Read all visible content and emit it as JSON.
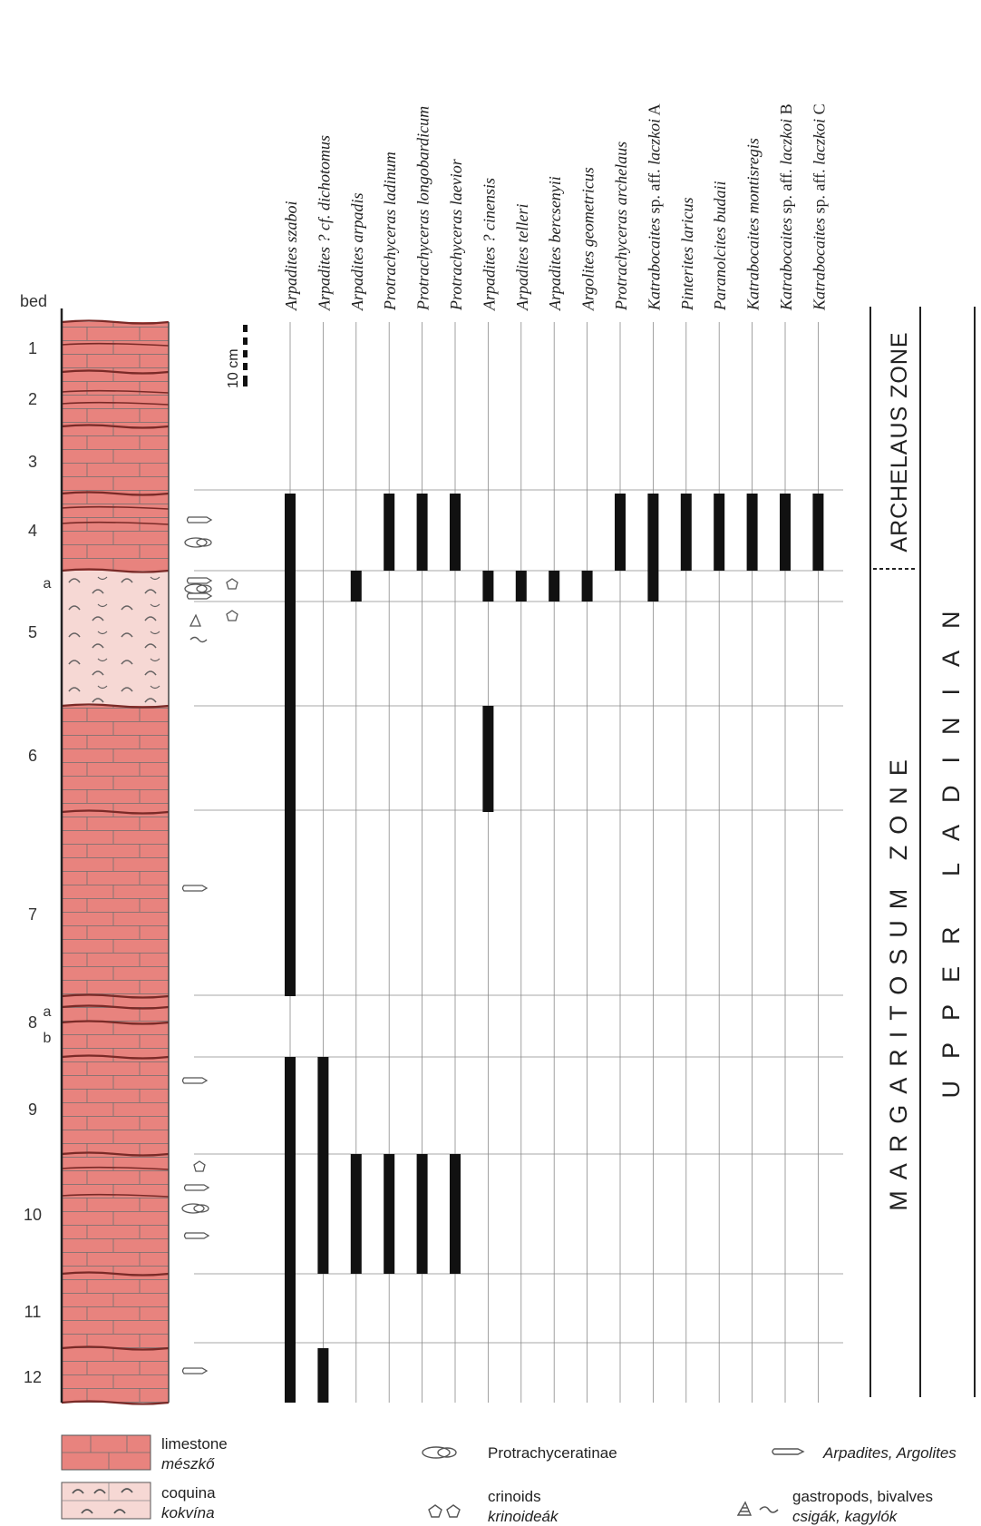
{
  "header": {
    "bed_label": "bed"
  },
  "scale_bar": {
    "label": "10 cm"
  },
  "beds": [
    {
      "label": "1"
    },
    {
      "label": "2"
    },
    {
      "label": "3"
    },
    {
      "label": "4"
    },
    {
      "label": "5",
      "sub_label": "a"
    },
    {
      "label": "6"
    },
    {
      "label": "7"
    },
    {
      "label": "8",
      "sub_labels": [
        "a",
        "b"
      ]
    },
    {
      "label": "9"
    },
    {
      "label": "10"
    },
    {
      "label": "11"
    },
    {
      "label": "12"
    }
  ],
  "taxa": [
    {
      "name": "Arpadites szaboi"
    },
    {
      "name": "Arpadites ? cf. dichotomus"
    },
    {
      "name": "Arpadites arpadis"
    },
    {
      "name": "Protrachyceras ladinum"
    },
    {
      "name": "Protrachyceras longobardicum"
    },
    {
      "name": "Protrachyceras laevior"
    },
    {
      "name": "Arpadites ? cinensis"
    },
    {
      "name": "Arpadites telleri"
    },
    {
      "name": "Arpadites bercsenyii"
    },
    {
      "name": "Argolites geometricus"
    },
    {
      "name": "Protrachyceras archelaus"
    },
    {
      "name": "Katrabocaites",
      "suffix": "sp. aff.",
      "epithet": "laczkoi",
      "letter": "A"
    },
    {
      "name": "Pinterites laricus"
    },
    {
      "name": "Paranolcites budaii"
    },
    {
      "name": "Katrabocaites montisregis"
    },
    {
      "name": "Katrabocaites",
      "suffix": "sp. aff.",
      "epithet": "laczkoi",
      "letter": "B"
    },
    {
      "name": "Katrabocaites",
      "suffix": "sp. aff.",
      "epithet": "laczkoi",
      "letter": "C"
    }
  ],
  "ranges": [
    {
      "taxon": 0,
      "from_bed": "4",
      "to_bed": "7"
    },
    {
      "taxon": 0,
      "from_bed": "9",
      "to_bed": "12"
    },
    {
      "taxon": 1,
      "from_bed": "9",
      "to_bed": "10"
    },
    {
      "taxon": 1,
      "from_bed": "12",
      "to_bed": "12"
    },
    {
      "taxon": 2,
      "from_bed": "5a",
      "to_bed": "5a"
    },
    {
      "taxon": 2,
      "from_bed": "10",
      "to_bed": "10"
    },
    {
      "taxon": 3,
      "from_bed": "4",
      "to_bed": "4"
    },
    {
      "taxon": 3,
      "from_bed": "10",
      "to_bed": "10"
    },
    {
      "taxon": 4,
      "from_bed": "4",
      "to_bed": "4"
    },
    {
      "taxon": 4,
      "from_bed": "10",
      "to_bed": "10"
    },
    {
      "taxon": 5,
      "from_bed": "4",
      "to_bed": "4"
    },
    {
      "taxon": 5,
      "from_bed": "10",
      "to_bed": "10"
    },
    {
      "taxon": 6,
      "from_bed": "5a",
      "to_bed": "5a"
    },
    {
      "taxon": 6,
      "from_bed": "6",
      "to_bed": "6"
    },
    {
      "taxon": 7,
      "from_bed": "5a",
      "to_bed": "5a"
    },
    {
      "taxon": 8,
      "from_bed": "5a",
      "to_bed": "5a"
    },
    {
      "taxon": 9,
      "from_bed": "5a",
      "to_bed": "5a"
    },
    {
      "taxon": 10,
      "from_bed": "4",
      "to_bed": "4"
    },
    {
      "taxon": 11,
      "from_bed": "4",
      "to_bed": "5a"
    },
    {
      "taxon": 12,
      "from_bed": "4",
      "to_bed": "4"
    },
    {
      "taxon": 13,
      "from_bed": "4",
      "to_bed": "4"
    },
    {
      "taxon": 14,
      "from_bed": "4",
      "to_bed": "4"
    },
    {
      "taxon": 15,
      "from_bed": "4",
      "to_bed": "4"
    },
    {
      "taxon": 16,
      "from_bed": "4",
      "to_bed": "4"
    }
  ],
  "zones": {
    "archelaus": "ARCHELAUS ZONE",
    "margaritosum": "MARGARITOSUM ZONE",
    "stage": "UPPER LADINIAN"
  },
  "legend": {
    "limestone_en": "limestone",
    "limestone_hu": "mészkő",
    "coquina_en": "coquina",
    "coquina_hu": "kokvína",
    "protrachyceratinae": "Protrachyceratinae",
    "crinoids_en": "crinoids",
    "crinoids_hu": "krinoideák",
    "arpadites": "Arpadites, Argolites",
    "gastropods_en": "gastropods, bivalves",
    "gastropods_hu": "csigák, kagylók"
  },
  "colors": {
    "limestone": "#e8837e",
    "coquina": "#f6d8d4",
    "bed_line": "#7a2a27",
    "grid": "#8a8a8a",
    "range_bar": "#111111"
  }
}
